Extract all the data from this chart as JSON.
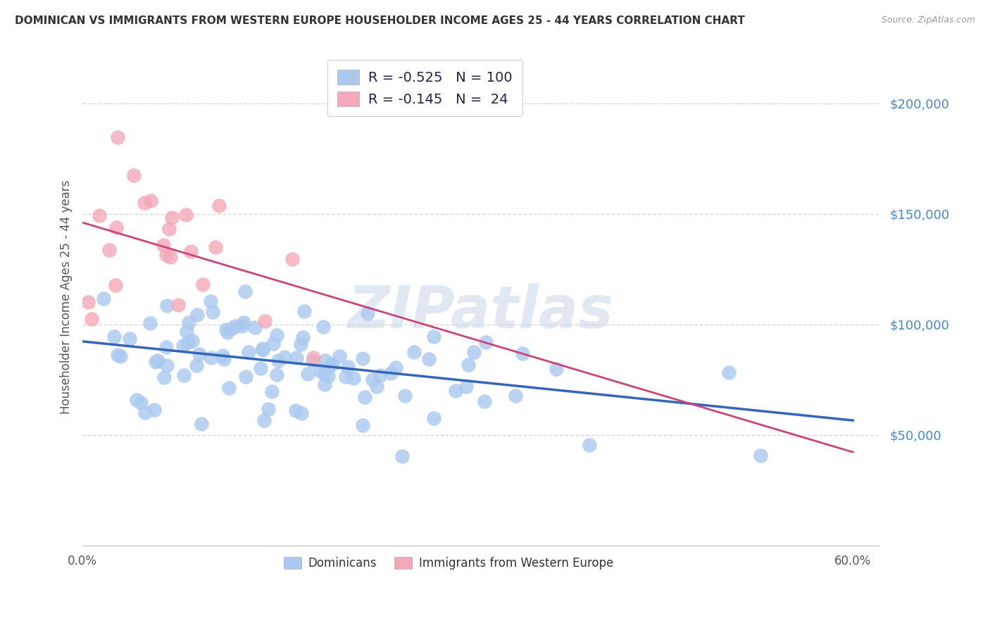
{
  "title": "DOMINICAN VS IMMIGRANTS FROM WESTERN EUROPE HOUSEHOLDER INCOME AGES 25 - 44 YEARS CORRELATION CHART",
  "source": "Source: ZipAtlas.com",
  "ylabel": "Householder Income Ages 25 - 44 years",
  "xlim": [
    0.0,
    0.62
  ],
  "ylim": [
    0,
    225000
  ],
  "blue_R": -0.525,
  "blue_N": 100,
  "pink_R": -0.145,
  "pink_N": 24,
  "blue_color": "#aac8f0",
  "pink_color": "#f4a8b8",
  "blue_line_color": "#3366bb",
  "pink_line_color": "#cc4477",
  "watermark": "ZIPatlas",
  "background_color": "#ffffff",
  "grid_color": "#cccccc",
  "blue_seed": 42,
  "pink_seed": 17,
  "legend_R_color": "#dd2222",
  "legend_N_color": "#2255cc",
  "legend_label_color": "#333344"
}
